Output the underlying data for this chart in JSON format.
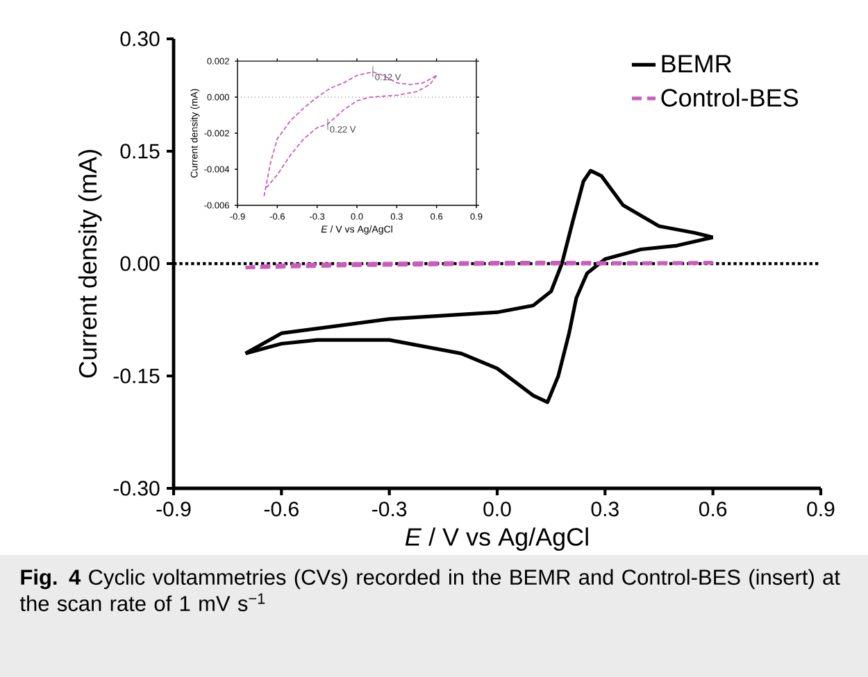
{
  "chart_data": [
    {
      "type": "line",
      "xlabel": "*E* / V vs Ag/AgCl",
      "ylabel": "Current density (mA)",
      "xlim": [
        -0.9,
        0.9
      ],
      "ylim": [
        -0.3,
        0.3
      ],
      "xticks": [
        -0.9,
        -0.6,
        -0.3,
        {
          "value": 0,
          "label": "0.0"
        },
        0.3,
        0.6,
        0.9
      ],
      "yticks": [
        {
          "value": -0.3,
          "label": "-0.30"
        },
        {
          "value": -0.15,
          "label": "-0.15"
        },
        {
          "value": 0,
          "label": "0.00"
        },
        {
          "value": 0.15,
          "label": "0.15"
        },
        {
          "value": 0.3,
          "label": "0.30"
        }
      ],
      "legend": "top right",
      "ref_lines": [
        {
          "axis": "y",
          "value": 0,
          "color": "#000000",
          "line_style": "dotted"
        }
      ],
      "annotations": [
        "**Fig. 4** Cyclic voltammetries (CVs) recorded in the BEMR and Control-BES (insert) at the scan rate of 1 mV s$^{−1}$"
      ],
      "series": [
        {
          "name": "BEMR",
          "color": "#000000",
          "line_style": "solid",
          "x": [
            -0.7,
            -0.6,
            -0.3,
            0.0,
            0.1,
            0.15,
            0.18,
            0.21,
            0.24,
            0.26,
            0.29,
            0.35,
            0.45,
            0.55,
            0.6
          ],
          "values": [
            -0.12,
            -0.093,
            -0.074,
            -0.065,
            -0.056,
            -0.037,
            0.0,
            0.056,
            0.11,
            0.124,
            0.117,
            0.078,
            0.05,
            0.041,
            0.035
          ]
        },
        {
          "color": "#000000",
          "line_style": "solid",
          "x": [
            0.6,
            0.5,
            0.4,
            0.3,
            0.25,
            0.22,
            0.2,
            0.17,
            0.14,
            0.1,
            0.0,
            -0.1,
            -0.3,
            -0.5,
            -0.6,
            -0.7
          ],
          "values": [
            0.035,
            0.024,
            0.019,
            0.006,
            -0.013,
            -0.046,
            -0.093,
            -0.15,
            -0.185,
            -0.176,
            -0.14,
            -0.12,
            -0.102,
            -0.102,
            -0.107,
            -0.12
          ]
        },
        {
          "name": "Control-BES",
          "color": "#cc5cbb",
          "line_style": "dashed",
          "x": [
            -0.7,
            -0.65,
            -0.6,
            -0.5,
            -0.4,
            -0.3,
            -0.2,
            -0.1,
            0.0,
            0.12,
            0.2,
            0.3,
            0.4,
            0.5,
            0.6
          ],
          "values": [
            -0.0055,
            -0.0036,
            -0.0023,
            -0.0013,
            -0.0006,
            0.0,
            0.0005,
            0.0008,
            0.0012,
            0.0014,
            0.0012,
            0.0008,
            0.0007,
            0.0008,
            0.0012
          ]
        },
        {
          "color": "#cc5cbb",
          "line_style": "dashed",
          "x": [
            0.6,
            0.55,
            0.45,
            0.3,
            0.1,
            0.0,
            -0.1,
            -0.22,
            -0.3,
            -0.4,
            -0.5,
            -0.6,
            -0.68
          ],
          "values": [
            0.0012,
            0.0007,
            0.0003,
            0.0001,
            0.0,
            -0.0002,
            -0.0007,
            -0.0015,
            -0.0017,
            -0.0023,
            -0.0032,
            -0.0043,
            -0.005
          ]
        }
      ]
    },
    {
      "type": "line",
      "xlabel": "*E* / V vs Ag/AgCl",
      "ylabel": "Current density (mA)",
      "xlim": [
        -0.9,
        0.9
      ],
      "ylim": [
        -0.006,
        0.002
      ],
      "xticks": [
        -0.9,
        -0.6,
        -0.3,
        {
          "value": 0,
          "label": "0.0"
        },
        0.3,
        0.6,
        0.9
      ],
      "yticks": [
        {
          "value": -0.006,
          "label": "-0.006"
        },
        {
          "value": -0.004,
          "label": "-0.004"
        },
        {
          "value": -0.002,
          "label": "-0.002"
        },
        {
          "value": 0,
          "label": "0.000"
        },
        {
          "value": 0.002,
          "label": "0.002"
        }
      ],
      "ref_lines": [
        {
          "axis": "y",
          "value": 0,
          "color": "#555555",
          "line_style": "dotted"
        }
      ],
      "annotations": [
        {
          "text": "0.12 V",
          "x": 0.12,
          "y": 0.0014
        },
        {
          "text": "0.22 V",
          "x": -0.22,
          "y": -0.0015
        }
      ],
      "series": [
        {
          "color": "#cc5cbb",
          "line_style": "dashed",
          "x": [
            -0.7,
            -0.65,
            -0.6,
            -0.5,
            -0.4,
            -0.3,
            -0.2,
            -0.1,
            0.0,
            0.12,
            0.2,
            0.3,
            0.4,
            0.5,
            0.6
          ],
          "values": [
            -0.0055,
            -0.0036,
            -0.0023,
            -0.0013,
            -0.0006,
            0.0,
            0.0005,
            0.0008,
            0.0012,
            0.0014,
            0.0012,
            0.0008,
            0.0007,
            0.0008,
            0.0012
          ]
        },
        {
          "color": "#cc5cbb",
          "line_style": "dashed",
          "x": [
            0.6,
            0.55,
            0.45,
            0.3,
            0.1,
            0.0,
            -0.1,
            -0.22,
            -0.3,
            -0.4,
            -0.5,
            -0.6,
            -0.68
          ],
          "values": [
            0.0012,
            0.0007,
            0.0003,
            0.0001,
            0.0,
            -0.0002,
            -0.0007,
            -0.0015,
            -0.0017,
            -0.0023,
            -0.0032,
            -0.0043,
            -0.005
          ]
        }
      ]
    }
  ]
}
